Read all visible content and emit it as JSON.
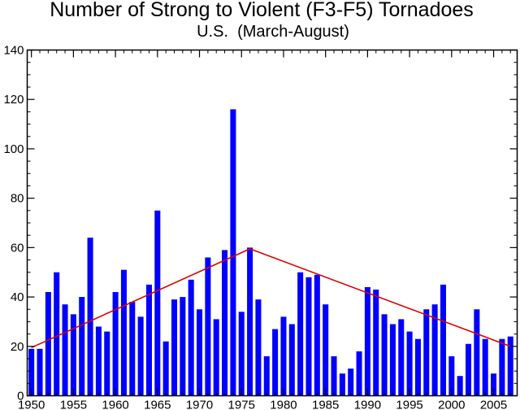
{
  "chart_data": {
    "type": "bar",
    "title": "Number of Strong to Violent (F3-F5) Tornadoes",
    "subtitle": "U.S.  (March-August)",
    "xlabel": "",
    "ylabel": "",
    "x": [
      1950,
      1951,
      1952,
      1953,
      1954,
      1955,
      1956,
      1957,
      1958,
      1959,
      1960,
      1961,
      1962,
      1963,
      1964,
      1965,
      1966,
      1967,
      1968,
      1969,
      1970,
      1971,
      1972,
      1973,
      1974,
      1975,
      1976,
      1977,
      1978,
      1979,
      1980,
      1981,
      1982,
      1983,
      1984,
      1985,
      1986,
      1987,
      1988,
      1989,
      1990,
      1991,
      1992,
      1993,
      1994,
      1995,
      1996,
      1997,
      1998,
      1999,
      2000,
      2001,
      2002,
      2003,
      2004,
      2005,
      2006,
      2007
    ],
    "values": [
      19,
      19,
      42,
      50,
      37,
      33,
      40,
      64,
      28,
      26,
      42,
      51,
      38,
      32,
      45,
      75,
      22,
      39,
      40,
      47,
      35,
      56,
      31,
      59,
      116,
      34,
      60,
      39,
      16,
      27,
      32,
      29,
      50,
      48,
      49,
      37,
      16,
      9,
      11,
      18,
      44,
      43,
      33,
      29,
      31,
      26,
      23,
      35,
      37,
      45,
      16,
      8,
      21,
      35,
      23,
      9,
      23,
      24
    ],
    "xlim": [
      1949.5,
      2007.8
    ],
    "ylim": [
      0,
      140
    ],
    "x_ticks": [
      1950,
      1955,
      1960,
      1965,
      1970,
      1975,
      1980,
      1985,
      1990,
      1995,
      2000,
      2005
    ],
    "y_ticks": [
      0,
      20,
      40,
      60,
      80,
      100,
      120,
      140
    ],
    "bar_color": "#0000ff",
    "trend_color": "#dd0000",
    "trend_lines": [
      {
        "points": [
          [
            1950,
            19.5
          ],
          [
            1976,
            59.5
          ]
        ]
      },
      {
        "points": [
          [
            1976,
            59.5
          ],
          [
            2007,
            20
          ]
        ]
      }
    ],
    "grid": false,
    "legend": "none"
  }
}
